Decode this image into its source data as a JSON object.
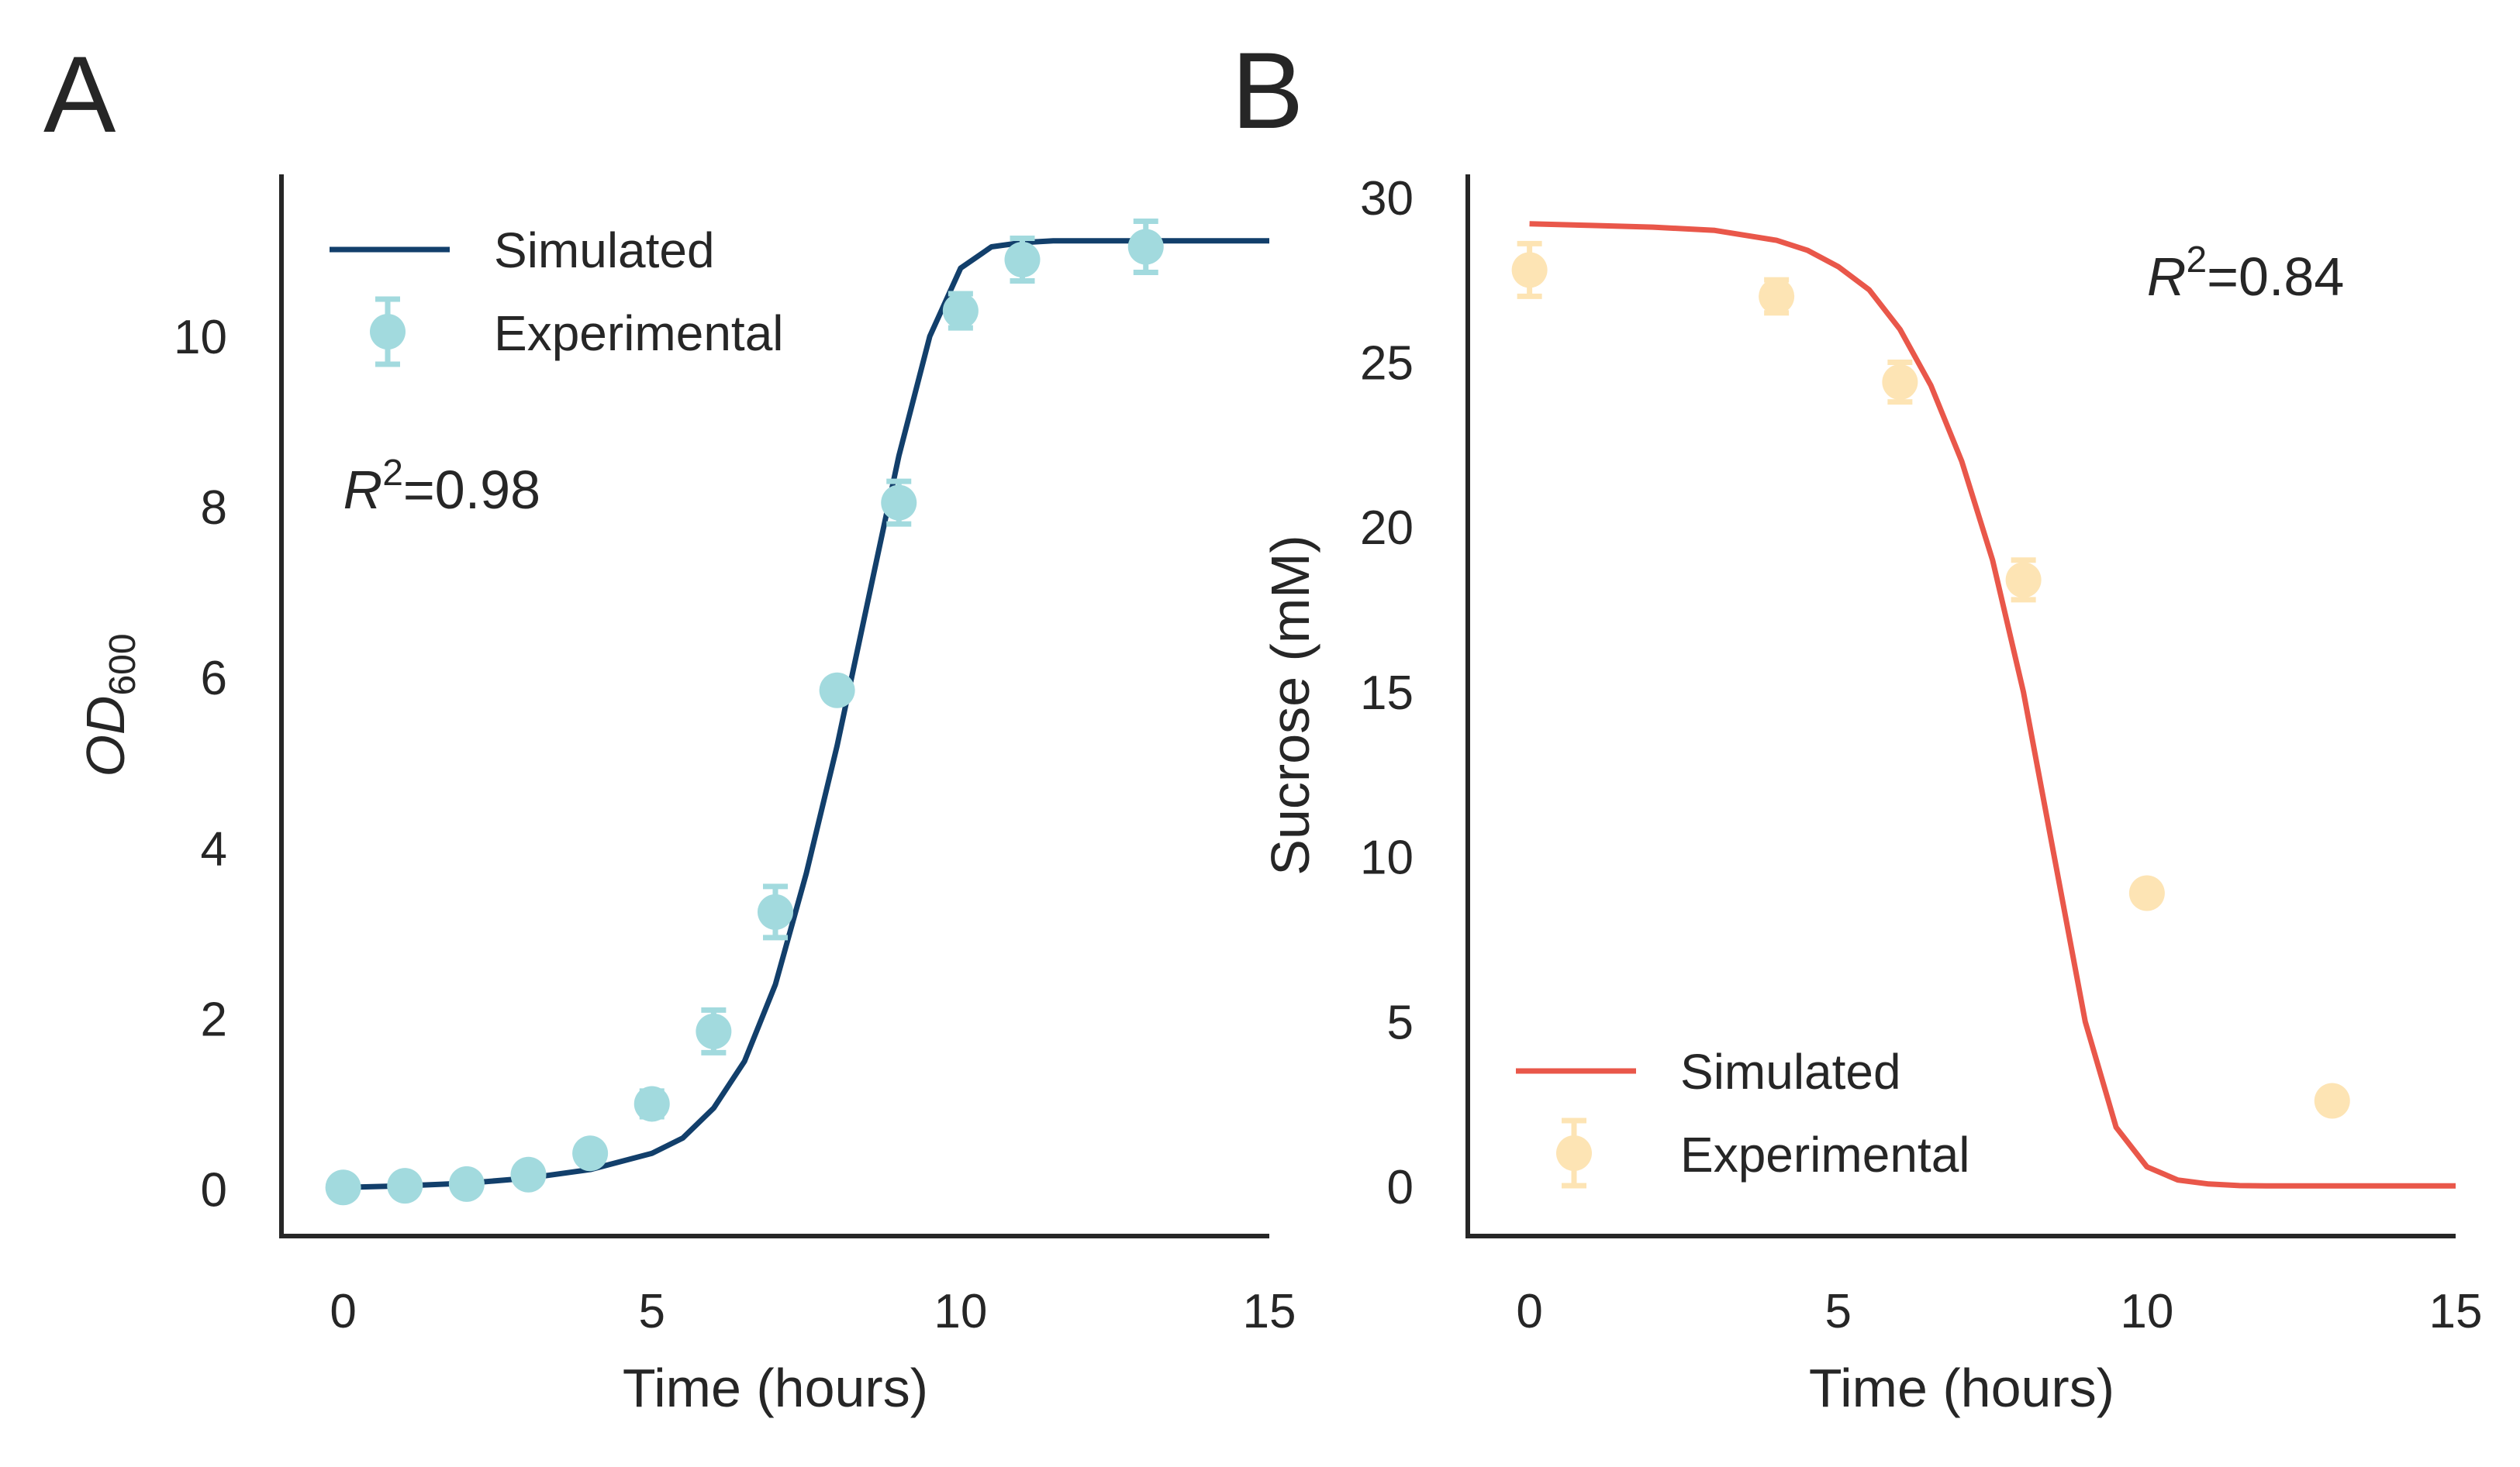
{
  "colors": {
    "panel_a_line": "#123f6b",
    "panel_a_points": "#a2dade",
    "panel_b_line": "#e9574a",
    "panel_b_points": "#fde4b4",
    "axis": "#262626"
  },
  "chart_data": [
    {
      "panel": "A",
      "type": "line",
      "xlabel": "Time (hours)",
      "ylabel_main": "OD",
      "ylabel_sub": "600",
      "xlim": [
        -1,
        15
      ],
      "ylim": [
        -0.55,
        11.9
      ],
      "xticks": [
        0,
        5,
        10,
        15
      ],
      "yticks": [
        0,
        2,
        4,
        6,
        8,
        10
      ],
      "grid": false,
      "legend_position": "top-left",
      "annotation": {
        "r": "R",
        "sup": "2",
        "value": "=0.98",
        "x": 0,
        "y": 8.2
      },
      "series": [
        {
          "name": "Simulated",
          "kind": "line",
          "x": [
            0,
            1,
            2,
            3,
            4,
            5,
            5.5,
            6,
            6.5,
            7,
            7.5,
            8,
            8.5,
            9,
            9.5,
            10,
            10.5,
            11,
            11.5,
            12,
            13,
            14,
            15
          ],
          "y": [
            0.02,
            0.04,
            0.07,
            0.13,
            0.23,
            0.42,
            0.6,
            0.95,
            1.5,
            2.4,
            3.7,
            5.2,
            6.9,
            8.6,
            10.0,
            10.8,
            11.05,
            11.1,
            11.12,
            11.12,
            11.12,
            11.12,
            11.12
          ]
        },
        {
          "name": "Experimental",
          "kind": "errorbar",
          "x": [
            0,
            1,
            2,
            3,
            4,
            5,
            6,
            7,
            8,
            9,
            10,
            11,
            13
          ],
          "y": [
            0.02,
            0.04,
            0.06,
            0.17,
            0.42,
            1.0,
            1.85,
            3.25,
            5.85,
            8.05,
            10.3,
            10.9,
            11.05
          ],
          "yerr": [
            0.03,
            0.03,
            0.03,
            0.1,
            0.12,
            0.15,
            0.25,
            0.3,
            0.12,
            0.25,
            0.2,
            0.25,
            0.3
          ]
        }
      ]
    },
    {
      "panel": "B",
      "type": "line",
      "xlabel": "Time (hours)",
      "ylabel": "Sucrose (mM)",
      "xlim": [
        -1,
        15
      ],
      "ylim": [
        -1.5,
        30.7
      ],
      "xticks": [
        0,
        5,
        10,
        15
      ],
      "yticks": [
        0,
        5,
        10,
        15,
        20,
        25,
        30
      ],
      "grid": false,
      "legend_position": "bottom-left",
      "annotation": {
        "r": "R",
        "sup": "2",
        "value": "=0.84",
        "x": 10,
        "y": 27.6
      },
      "series": [
        {
          "name": "Simulated",
          "kind": "line",
          "x": [
            0,
            1,
            2,
            3,
            4,
            4.5,
            5,
            5.5,
            6,
            6.5,
            7,
            7.5,
            8,
            8.5,
            9,
            9.5,
            10,
            10.5,
            11,
            11.5,
            12,
            13,
            14,
            15
          ],
          "y": [
            29.2,
            29.15,
            29.1,
            29.0,
            28.7,
            28.4,
            27.9,
            27.2,
            26.0,
            24.3,
            22.0,
            19.0,
            15.0,
            10.0,
            5.0,
            1.8,
            0.6,
            0.2,
            0.08,
            0.03,
            0.02,
            0.02,
            0.02,
            0.02
          ]
        },
        {
          "name": "Experimental",
          "kind": "errorbar",
          "x": [
            0,
            4,
            6,
            8,
            10,
            13
          ],
          "y": [
            27.8,
            27.0,
            24.4,
            18.4,
            8.9,
            2.6
          ],
          "yerr": [
            0.8,
            0.5,
            0.6,
            0.6,
            0.3,
            0.3
          ]
        }
      ]
    }
  ]
}
